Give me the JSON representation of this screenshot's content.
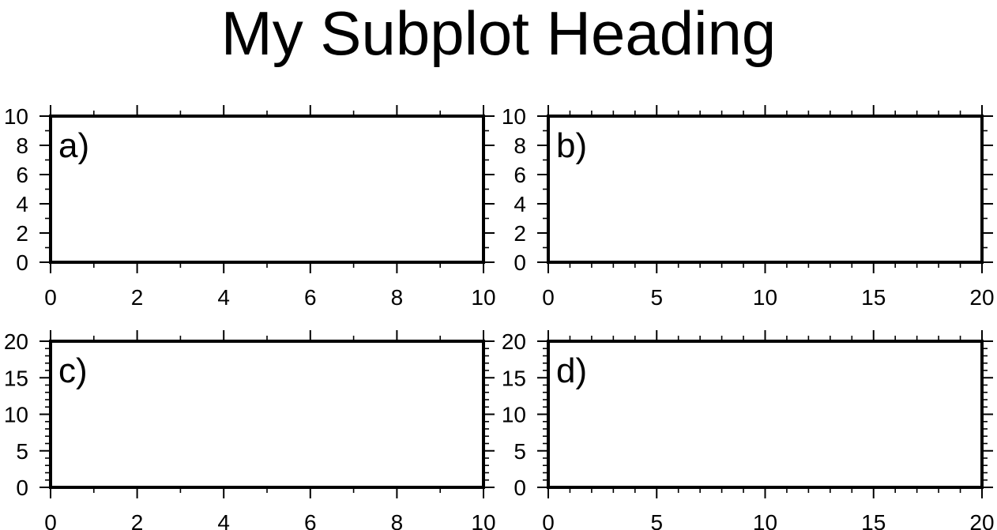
{
  "title": "My Subplot Heading",
  "chart_data": [
    {
      "type": "line",
      "panel_label": "a)",
      "xlim": [
        0,
        10
      ],
      "ylim": [
        0,
        10
      ],
      "x_ticks": [
        0,
        2,
        4,
        6,
        8,
        10
      ],
      "y_ticks": [
        0,
        2,
        4,
        6,
        8,
        10
      ],
      "x_minor_step": 1,
      "y_minor_step": 1,
      "series": [],
      "grid": false
    },
    {
      "type": "line",
      "panel_label": "b)",
      "xlim": [
        0,
        20
      ],
      "ylim": [
        0,
        10
      ],
      "x_ticks": [
        0,
        5,
        10,
        15,
        20
      ],
      "y_ticks": [
        0,
        2,
        4,
        6,
        8,
        10
      ],
      "x_minor_step": 1,
      "y_minor_step": 1,
      "series": [],
      "grid": false
    },
    {
      "type": "line",
      "panel_label": "c)",
      "xlim": [
        0,
        10
      ],
      "ylim": [
        0,
        20
      ],
      "x_ticks": [
        0,
        2,
        4,
        6,
        8,
        10
      ],
      "y_ticks": [
        0,
        5,
        10,
        15,
        20
      ],
      "x_minor_step": 1,
      "y_minor_step": 1,
      "series": [],
      "grid": false
    },
    {
      "type": "line",
      "panel_label": "d)",
      "xlim": [
        0,
        20
      ],
      "ylim": [
        0,
        20
      ],
      "x_ticks": [
        0,
        5,
        10,
        15,
        20
      ],
      "y_ticks": [
        0,
        5,
        10,
        15,
        20
      ],
      "x_minor_step": 1,
      "y_minor_step": 1,
      "series": [],
      "grid": false
    }
  ]
}
